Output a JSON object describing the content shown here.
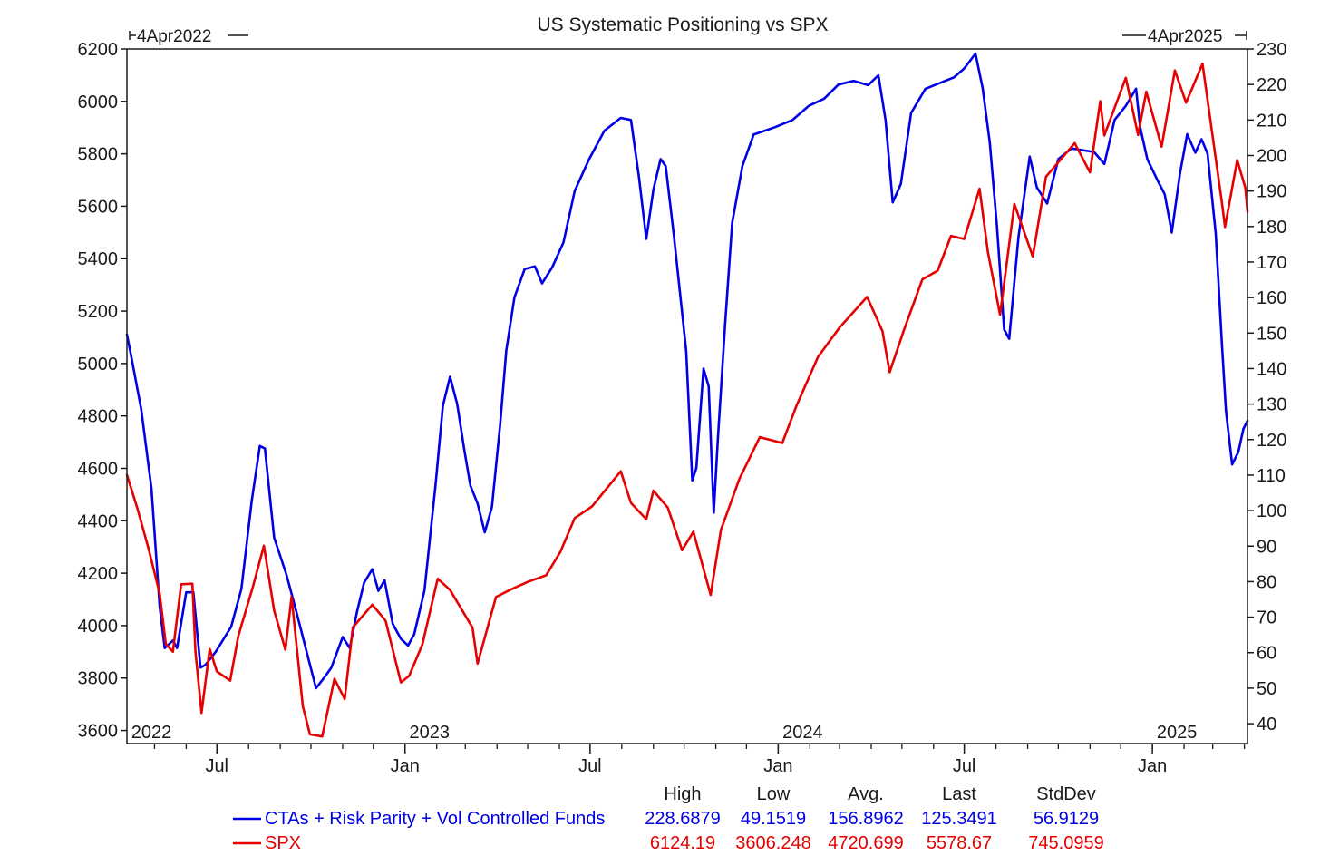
{
  "chart_data": {
    "type": "line",
    "title": "US Systematic Positioning vs SPX",
    "date_range": {
      "start": "4Apr2022",
      "end": "4Apr2025"
    },
    "left_axis": {
      "series": "SPX",
      "ylim": [
        3550,
        6200
      ],
      "ticks": [
        3600,
        3800,
        4000,
        4200,
        4400,
        4600,
        4800,
        5000,
        5200,
        5400,
        5600,
        5800,
        6000,
        6200
      ]
    },
    "right_axis": {
      "series": "CTAs + Risk Parity + Vol Controlled Funds",
      "ylim": [
        34.4,
        230
      ],
      "ticks": [
        40,
        50,
        60,
        70,
        80,
        90,
        100,
        110,
        120,
        130,
        140,
        150,
        160,
        170,
        180,
        190,
        200,
        210,
        220,
        230
      ]
    },
    "x_axis": {
      "start": "2022-04-04",
      "end": "2025-04-04",
      "month_ticks": [
        {
          "label": "Jul",
          "date": "2022-07-01"
        },
        {
          "label": "Jan",
          "date": "2023-01-01"
        },
        {
          "label": "Jul",
          "date": "2023-07-01"
        },
        {
          "label": "Jan",
          "date": "2024-01-01"
        },
        {
          "label": "Jul",
          "date": "2024-07-01"
        },
        {
          "label": "Jan",
          "date": "2025-01-01"
        }
      ],
      "year_labels": [
        {
          "label": "2022",
          "date": "2022-04-04"
        },
        {
          "label": "2023",
          "date": "2023-01-01"
        },
        {
          "label": "2024",
          "date": "2024-01-01"
        },
        {
          "label": "2025",
          "date": "2025-01-01"
        }
      ]
    },
    "grid": false,
    "series": [
      {
        "name": "CTAs + Risk Parity + Vol Controlled Funds",
        "axis": "right",
        "color": "#0000e6",
        "points": [
          [
            "2022-04-04",
            149.6
          ],
          [
            "2022-04-08",
            143.8
          ],
          [
            "2022-04-18",
            128.5
          ],
          [
            "2022-04-28",
            106.2
          ],
          [
            "2022-05-06",
            73.0
          ],
          [
            "2022-05-11",
            61.3
          ],
          [
            "2022-05-19",
            63.4
          ],
          [
            "2022-05-23",
            61.3
          ],
          [
            "2022-06-01",
            77.0
          ],
          [
            "2022-06-08",
            77.0
          ],
          [
            "2022-06-15",
            55.8
          ],
          [
            "2022-06-20",
            56.6
          ],
          [
            "2022-06-30",
            60.3
          ],
          [
            "2022-07-15",
            67.3
          ],
          [
            "2022-07-25",
            78.0
          ],
          [
            "2022-08-04",
            102.6
          ],
          [
            "2022-08-12",
            118.2
          ],
          [
            "2022-08-17",
            117.5
          ],
          [
            "2022-08-26",
            92.4
          ],
          [
            "2022-09-07",
            82.0
          ],
          [
            "2022-09-16",
            72.3
          ],
          [
            "2022-09-30",
            56.6
          ],
          [
            "2022-10-06",
            50.0
          ],
          [
            "2022-10-14",
            53.0
          ],
          [
            "2022-10-21",
            55.8
          ],
          [
            "2022-11-01",
            64.4
          ],
          [
            "2022-11-08",
            61.3
          ],
          [
            "2022-11-15",
            71.4
          ],
          [
            "2022-11-22",
            79.7
          ],
          [
            "2022-11-30",
            83.5
          ],
          [
            "2022-12-06",
            77.4
          ],
          [
            "2022-12-12",
            80.4
          ],
          [
            "2022-12-20",
            68.1
          ],
          [
            "2022-12-28",
            63.9
          ],
          [
            "2023-01-04",
            62.0
          ],
          [
            "2023-01-10",
            65.2
          ],
          [
            "2023-01-20",
            77.5
          ],
          [
            "2023-01-31",
            107.7
          ],
          [
            "2023-02-07",
            129.5
          ],
          [
            "2023-02-14",
            137.7
          ],
          [
            "2023-02-21",
            130.0
          ],
          [
            "2023-02-28",
            117.0
          ],
          [
            "2023-03-06",
            107.0
          ],
          [
            "2023-03-13",
            102.0
          ],
          [
            "2023-03-20",
            93.9
          ],
          [
            "2023-03-27",
            101.0
          ],
          [
            "2023-04-04",
            124.0
          ],
          [
            "2023-04-10",
            145.0
          ],
          [
            "2023-04-18",
            160.0
          ],
          [
            "2023-04-28",
            168.0
          ],
          [
            "2023-05-08",
            168.8
          ],
          [
            "2023-05-15",
            164.0
          ],
          [
            "2023-05-25",
            168.5
          ],
          [
            "2023-06-05",
            175.5
          ],
          [
            "2023-06-16",
            190.0
          ],
          [
            "2023-06-30",
            198.9
          ],
          [
            "2023-07-15",
            207.0
          ],
          [
            "2023-07-31",
            210.6
          ],
          [
            "2023-08-10",
            210.0
          ],
          [
            "2023-08-18",
            193.5
          ],
          [
            "2023-08-25",
            176.5
          ],
          [
            "2023-09-01",
            190.5
          ],
          [
            "2023-09-08",
            199.0
          ],
          [
            "2023-09-13",
            197.0
          ],
          [
            "2023-09-21",
            177.5
          ],
          [
            "2023-10-03",
            145.0
          ],
          [
            "2023-10-09",
            108.5
          ],
          [
            "2023-10-13",
            112.0
          ],
          [
            "2023-10-20",
            140.0
          ],
          [
            "2023-10-25",
            135.0
          ],
          [
            "2023-10-30",
            99.4
          ],
          [
            "2023-11-03",
            120.0
          ],
          [
            "2023-11-10",
            152.0
          ],
          [
            "2023-11-17",
            181.0
          ],
          [
            "2023-11-27",
            197.0
          ],
          [
            "2023-12-08",
            205.9
          ],
          [
            "2023-12-29",
            208.0
          ],
          [
            "2024-01-15",
            210.0
          ],
          [
            "2024-01-31",
            214.0
          ],
          [
            "2024-02-15",
            216.0
          ],
          [
            "2024-02-29",
            220.0
          ],
          [
            "2024-03-15",
            221.0
          ],
          [
            "2024-03-29",
            219.8
          ],
          [
            "2024-04-08",
            222.6
          ],
          [
            "2024-04-15",
            210.0
          ],
          [
            "2024-04-22",
            186.8
          ],
          [
            "2024-04-30",
            192.0
          ],
          [
            "2024-05-10",
            212.0
          ],
          [
            "2024-05-24",
            218.8
          ],
          [
            "2024-06-07",
            220.4
          ],
          [
            "2024-06-21",
            222.0
          ],
          [
            "2024-07-01",
            224.5
          ],
          [
            "2024-07-12",
            228.7
          ],
          [
            "2024-07-19",
            219.0
          ],
          [
            "2024-07-26",
            203.6
          ],
          [
            "2024-08-02",
            180.0
          ],
          [
            "2024-08-09",
            151.0
          ],
          [
            "2024-08-14",
            148.4
          ],
          [
            "2024-08-23",
            177.0
          ],
          [
            "2024-09-03",
            199.7
          ],
          [
            "2024-09-10",
            191.0
          ],
          [
            "2024-09-20",
            186.5
          ],
          [
            "2024-10-01",
            199.0
          ],
          [
            "2024-10-14",
            202.0
          ],
          [
            "2024-10-25",
            201.5
          ],
          [
            "2024-11-05",
            201.0
          ],
          [
            "2024-11-15",
            197.6
          ],
          [
            "2024-11-25",
            210.0
          ],
          [
            "2024-12-06",
            214.0
          ],
          [
            "2024-12-16",
            218.8
          ],
          [
            "2024-12-20",
            208.0
          ],
          [
            "2024-12-27",
            199.0
          ],
          [
            "2025-01-06",
            193.0
          ],
          [
            "2025-01-13",
            189.1
          ],
          [
            "2025-01-20",
            178.3
          ],
          [
            "2025-01-28",
            195.0
          ],
          [
            "2025-02-04",
            206.0
          ],
          [
            "2025-02-12",
            200.8
          ],
          [
            "2025-02-18",
            204.6
          ],
          [
            "2025-02-24",
            200.5
          ],
          [
            "2025-03-04",
            178.0
          ],
          [
            "2025-03-10",
            147.0
          ],
          [
            "2025-03-14",
            128.0
          ],
          [
            "2025-03-20",
            113.0
          ],
          [
            "2025-03-26",
            116.5
          ],
          [
            "2025-03-31",
            123.0
          ],
          [
            "2025-04-04",
            125.3
          ]
        ]
      },
      {
        "name": "SPX",
        "axis": "left",
        "color": "#e60000",
        "points": [
          [
            "2022-04-04",
            4575
          ],
          [
            "2022-04-14",
            4450
          ],
          [
            "2022-04-25",
            4296
          ],
          [
            "2022-05-06",
            4123
          ],
          [
            "2022-05-12",
            3930
          ],
          [
            "2022-05-19",
            3900
          ],
          [
            "2022-05-27",
            4158
          ],
          [
            "2022-06-07",
            4160
          ],
          [
            "2022-06-10",
            3900
          ],
          [
            "2022-06-16",
            3667
          ],
          [
            "2022-06-24",
            3911
          ],
          [
            "2022-07-01",
            3825
          ],
          [
            "2022-07-14",
            3790
          ],
          [
            "2022-07-22",
            3961
          ],
          [
            "2022-08-05",
            4145
          ],
          [
            "2022-08-16",
            4305
          ],
          [
            "2022-08-26",
            4057
          ],
          [
            "2022-09-06",
            3908
          ],
          [
            "2022-09-12",
            4110
          ],
          [
            "2022-09-23",
            3693
          ],
          [
            "2022-09-30",
            3585
          ],
          [
            "2022-10-12",
            3577
          ],
          [
            "2022-10-24",
            3797
          ],
          [
            "2022-11-03",
            3720
          ],
          [
            "2022-11-11",
            3993
          ],
          [
            "2022-11-30",
            4080
          ],
          [
            "2022-12-13",
            4019
          ],
          [
            "2022-12-28",
            3783
          ],
          [
            "2023-01-05",
            3808
          ],
          [
            "2023-01-18",
            3928
          ],
          [
            "2023-02-02",
            4179
          ],
          [
            "2023-02-14",
            4136
          ],
          [
            "2023-03-08",
            3992
          ],
          [
            "2023-03-13",
            3855
          ],
          [
            "2023-03-31",
            4109
          ],
          [
            "2023-04-14",
            4137
          ],
          [
            "2023-05-01",
            4167
          ],
          [
            "2023-05-19",
            4192
          ],
          [
            "2023-06-02",
            4282
          ],
          [
            "2023-06-16",
            4410
          ],
          [
            "2023-07-03",
            4455
          ],
          [
            "2023-07-31",
            4589
          ],
          [
            "2023-08-10",
            4468
          ],
          [
            "2023-08-25",
            4406
          ],
          [
            "2023-09-01",
            4515
          ],
          [
            "2023-09-15",
            4450
          ],
          [
            "2023-09-29",
            4288
          ],
          [
            "2023-10-10",
            4358
          ],
          [
            "2023-10-27",
            4117
          ],
          [
            "2023-11-06",
            4365
          ],
          [
            "2023-11-24",
            4559
          ],
          [
            "2023-12-14",
            4719
          ],
          [
            "2024-01-05",
            4697
          ],
          [
            "2024-01-19",
            4840
          ],
          [
            "2024-02-09",
            5026
          ],
          [
            "2024-03-01",
            5137
          ],
          [
            "2024-03-28",
            5254
          ],
          [
            "2024-04-12",
            5123
          ],
          [
            "2024-04-19",
            4967
          ],
          [
            "2024-05-03",
            5128
          ],
          [
            "2024-05-21",
            5321
          ],
          [
            "2024-06-05",
            5354
          ],
          [
            "2024-06-18",
            5487
          ],
          [
            "2024-07-01",
            5475
          ],
          [
            "2024-07-16",
            5667
          ],
          [
            "2024-07-24",
            5427
          ],
          [
            "2024-08-05",
            5186
          ],
          [
            "2024-08-19",
            5608
          ],
          [
            "2024-09-06",
            5408
          ],
          [
            "2024-09-19",
            5713
          ],
          [
            "2024-10-17",
            5841
          ],
          [
            "2024-11-01",
            5729
          ],
          [
            "2024-11-11",
            6001
          ],
          [
            "2024-11-15",
            5870
          ],
          [
            "2024-12-06",
            6090
          ],
          [
            "2024-12-18",
            5872
          ],
          [
            "2024-12-26",
            6037
          ],
          [
            "2025-01-10",
            5827
          ],
          [
            "2025-01-23",
            6118
          ],
          [
            "2025-02-03",
            5995
          ],
          [
            "2025-02-19",
            6144
          ],
          [
            "2025-03-10",
            5614
          ],
          [
            "2025-03-13",
            5521
          ],
          [
            "2025-03-25",
            5776
          ],
          [
            "2025-04-02",
            5670
          ],
          [
            "2025-04-04",
            5579
          ]
        ]
      }
    ],
    "legend": {
      "placement": "bottom",
      "columns": [
        "High",
        "Low",
        "Avg.",
        "Last",
        "StdDev"
      ],
      "rows": [
        {
          "name": "CTAs + Risk Parity + Vol Controlled Funds",
          "color": "#0000e6",
          "values": [
            "228.6879",
            "49.1519",
            "156.8962",
            "125.3491",
            "56.9129"
          ]
        },
        {
          "name": "SPX",
          "color": "#e60000",
          "values": [
            "6124.19",
            "3606.248",
            "4720.699",
            "5578.67",
            "745.0959"
          ]
        }
      ]
    }
  }
}
